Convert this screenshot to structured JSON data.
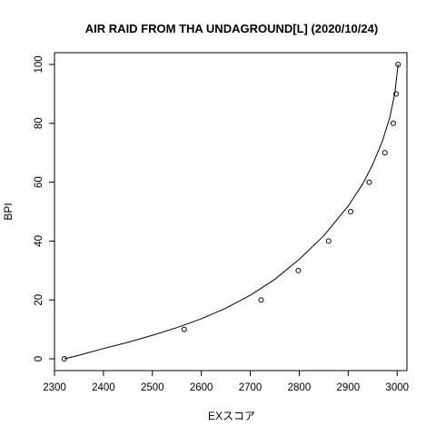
{
  "chart_data": {
    "type": "scatter",
    "title": "AIR RAID FROM THA UNDAGROUND[L] (2020/10/24)",
    "xlabel": "EXスコア",
    "ylabel": "BPI",
    "xlim": [
      2300,
      3020
    ],
    "ylim": [
      -4,
      104
    ],
    "x_ticks": [
      2300,
      2400,
      2500,
      2600,
      2700,
      2800,
      2900,
      3000
    ],
    "y_ticks": [
      0,
      20,
      40,
      60,
      80,
      100
    ],
    "points": [
      {
        "x": 2320,
        "y": 0
      },
      {
        "x": 2565,
        "y": 10
      },
      {
        "x": 2722,
        "y": 20
      },
      {
        "x": 2798,
        "y": 30
      },
      {
        "x": 2860,
        "y": 40
      },
      {
        "x": 2905,
        "y": 50
      },
      {
        "x": 2943,
        "y": 60
      },
      {
        "x": 2975,
        "y": 70
      },
      {
        "x": 2992,
        "y": 80
      },
      {
        "x": 2998,
        "y": 90
      },
      {
        "x": 3002,
        "y": 100
      }
    ],
    "fit_curve": {
      "name": "",
      "x": [
        2320,
        2350,
        2400,
        2450,
        2500,
        2550,
        2600,
        2650,
        2700,
        2750,
        2800,
        2850,
        2900,
        2930,
        2950,
        2970,
        2985,
        2995,
        3002
      ],
      "y": [
        0,
        1.2,
        3.5,
        5.6,
        8.0,
        10.6,
        13.6,
        17.2,
        21.6,
        27.0,
        33.8,
        41.8,
        51.9,
        59.5,
        66.0,
        74.0,
        82.0,
        90.0,
        100.0
      ]
    },
    "grid": false,
    "legend": "none"
  }
}
